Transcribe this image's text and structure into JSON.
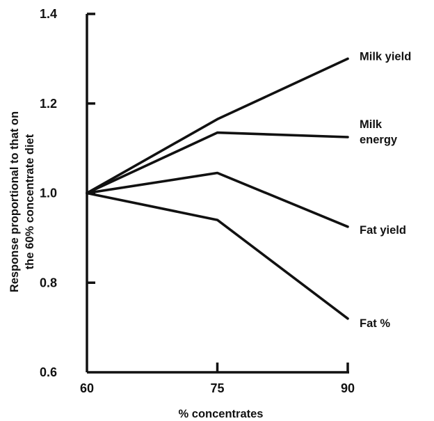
{
  "chart_data": {
    "type": "line",
    "title": "",
    "xlabel": "% concentrates",
    "ylabel_lines": [
      "Response proportional to that on",
      "the 60% concentrate diet"
    ],
    "x": [
      60,
      75,
      90
    ],
    "xlim": [
      60,
      90
    ],
    "ylim": [
      0.6,
      1.4
    ],
    "x_ticks": [
      "60",
      "75",
      "90"
    ],
    "y_ticks": [
      "1.4",
      "1.2",
      "1.0",
      "0.8",
      "0.6"
    ],
    "grid": false,
    "series": [
      {
        "name": "Milk yield",
        "label_lines": [
          "Milk yield"
        ],
        "values": [
          1.0,
          1.165,
          1.3
        ]
      },
      {
        "name": "Milk energy",
        "label_lines": [
          "Milk",
          "energy"
        ],
        "values": [
          1.0,
          1.135,
          1.125
        ]
      },
      {
        "name": "Fat yield",
        "label_lines": [
          "Fat yield"
        ],
        "values": [
          1.0,
          1.045,
          0.925
        ]
      },
      {
        "name": "Fat %",
        "label_lines": [
          "Fat %"
        ],
        "values": [
          1.0,
          0.94,
          0.72
        ]
      }
    ],
    "line_color": "#111111"
  }
}
